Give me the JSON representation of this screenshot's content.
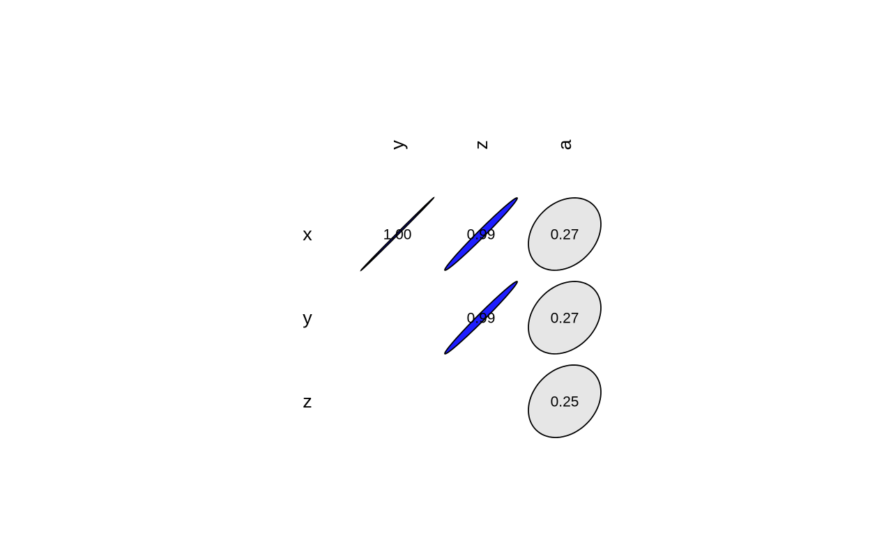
{
  "chart_data": {
    "type": "heatmap",
    "style": "correlation-ellipse",
    "columns": [
      "y",
      "z",
      "a"
    ],
    "rows": [
      "x",
      "y",
      "z"
    ],
    "cells": [
      {
        "row": "x",
        "col": "y",
        "value": 1.0,
        "label": "1.00"
      },
      {
        "row": "x",
        "col": "z",
        "value": 0.99,
        "label": "0.99"
      },
      {
        "row": "x",
        "col": "a",
        "value": 0.27,
        "label": "0.27"
      },
      {
        "row": "y",
        "col": "z",
        "value": 0.99,
        "label": "0.99"
      },
      {
        "row": "y",
        "col": "a",
        "value": 0.27,
        "label": "0.27"
      },
      {
        "row": "z",
        "col": "a",
        "value": 0.25,
        "label": "0.25"
      }
    ],
    "colors": {
      "high": "#1a1aff",
      "low": "#e6e6e6",
      "outline": "#000000"
    }
  }
}
